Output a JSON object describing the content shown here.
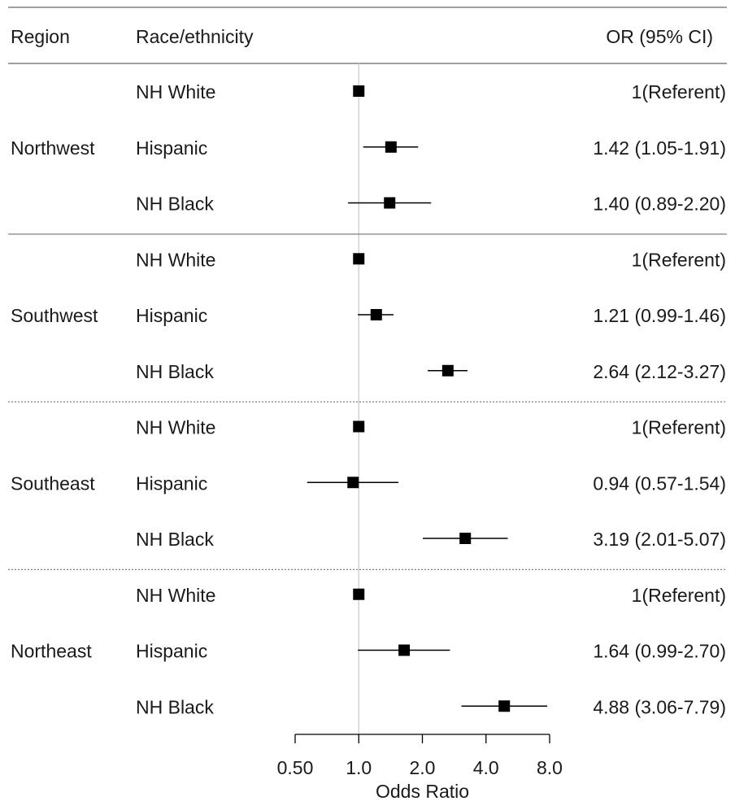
{
  "header": {
    "region": "Region",
    "race": "Race/ethnicity",
    "or": "OR (95% CI)"
  },
  "chart_data": {
    "type": "forest",
    "xlabel": "Odds Ratio",
    "xscale": "log",
    "xlim": [
      0.5,
      8.0
    ],
    "reference_line": 1.0,
    "ticks": [
      {
        "value": 0.5,
        "label": "0.50"
      },
      {
        "value": 1.0,
        "label": "1.0"
      },
      {
        "value": 2.0,
        "label": "2.0"
      },
      {
        "value": 4.0,
        "label": "4.0"
      },
      {
        "value": 8.0,
        "label": "8.0"
      }
    ],
    "groups": [
      {
        "region": "Northwest",
        "rows": [
          {
            "race": "NH White",
            "or": 1.0,
            "lo": null,
            "hi": null,
            "text": "1(Referent)"
          },
          {
            "race": "Hispanic",
            "or": 1.42,
            "lo": 1.05,
            "hi": 1.91,
            "text": "1.42 (1.05-1.91)"
          },
          {
            "race": "NH Black",
            "or": 1.4,
            "lo": 0.89,
            "hi": 2.2,
            "text": "1.40 (0.89-2.20)"
          }
        ]
      },
      {
        "region": "Southwest",
        "rows": [
          {
            "race": "NH White",
            "or": 1.0,
            "lo": null,
            "hi": null,
            "text": "1(Referent)"
          },
          {
            "race": "Hispanic",
            "or": 1.21,
            "lo": 0.99,
            "hi": 1.46,
            "text": "1.21 (0.99-1.46)"
          },
          {
            "race": "NH Black",
            "or": 2.64,
            "lo": 2.12,
            "hi": 3.27,
            "text": "2.64 (2.12-3.27)"
          }
        ]
      },
      {
        "region": "Southeast",
        "rows": [
          {
            "race": "NH White",
            "or": 1.0,
            "lo": null,
            "hi": null,
            "text": "1(Referent)"
          },
          {
            "race": "Hispanic",
            "or": 0.94,
            "lo": 0.57,
            "hi": 1.54,
            "text": "0.94 (0.57-1.54)"
          },
          {
            "race": "NH Black",
            "or": 3.19,
            "lo": 2.01,
            "hi": 5.07,
            "text": "3.19 (2.01-5.07)"
          }
        ]
      },
      {
        "region": "Northeast",
        "rows": [
          {
            "race": "NH White",
            "or": 1.0,
            "lo": null,
            "hi": null,
            "text": "1(Referent)"
          },
          {
            "race": "Hispanic",
            "or": 1.64,
            "lo": 0.99,
            "hi": 2.7,
            "text": "1.64 (0.99-2.70)"
          },
          {
            "race": "NH Black",
            "or": 4.88,
            "lo": 3.06,
            "hi": 7.79,
            "text": "4.88 (3.06-7.79)"
          }
        ]
      }
    ]
  }
}
